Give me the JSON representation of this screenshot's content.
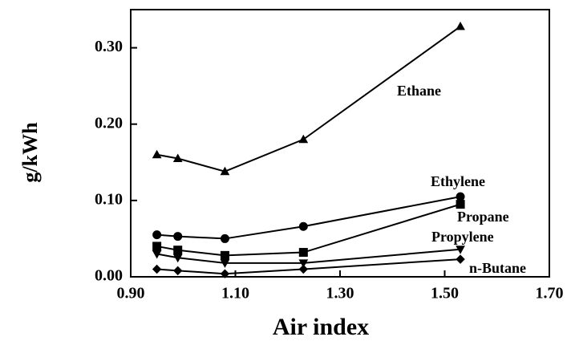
{
  "chart_data": {
    "type": "line",
    "x_label": "Air index",
    "y_label": "g/kWh",
    "x": [
      0.95,
      0.99,
      1.08,
      1.23,
      1.53
    ],
    "series": [
      {
        "name": "Ethane",
        "color": "#000000",
        "marker": "triangle",
        "values": [
          0.16,
          0.155,
          0.138,
          0.18,
          0.328
        ]
      },
      {
        "name": "Ethylene",
        "color": "#000000",
        "marker": "circle",
        "values": [
          0.055,
          0.053,
          0.05,
          0.066,
          0.105
        ]
      },
      {
        "name": "Propane",
        "color": "#000000",
        "marker": "square",
        "values": [
          0.04,
          0.035,
          0.028,
          0.032,
          0.095
        ]
      },
      {
        "name": "Propylene",
        "color": "#000000",
        "marker": "triangle-down",
        "values": [
          0.03,
          0.025,
          0.018,
          0.018,
          0.036
        ]
      },
      {
        "name": "n-Butane",
        "color": "#000000",
        "marker": "diamond",
        "values": [
          0.01,
          0.008,
          0.004,
          0.01,
          0.023
        ]
      }
    ],
    "xlim": [
      0.9,
      1.7
    ],
    "xticks": [
      {
        "value": 0.9,
        "label": "0.90"
      },
      {
        "value": 1.1,
        "label": "1.10"
      },
      {
        "value": 1.3,
        "label": "1.30"
      },
      {
        "value": 1.5,
        "label": "1.50"
      },
      {
        "value": 1.7,
        "label": "1.70"
      }
    ],
    "ylim": [
      0,
      0.35
    ],
    "yticks": [
      {
        "value": 0,
        "label": "0.00"
      },
      {
        "value": 0.1,
        "label": "0.10"
      },
      {
        "value": 0.2,
        "label": "0.20"
      },
      {
        "value": 0.3,
        "label": "0.30"
      }
    ],
    "grid": false
  }
}
